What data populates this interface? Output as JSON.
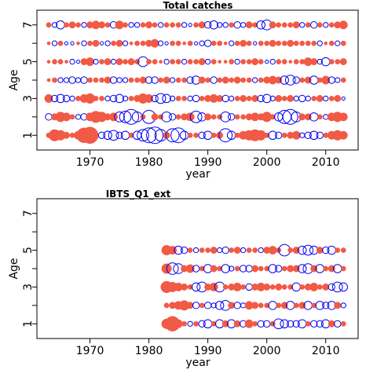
{
  "chart_data": [
    {
      "type": "scatter",
      "title": "Total catches",
      "xlabel": "year",
      "ylabel": "Age",
      "xlim": [
        1961,
        2015.5
      ],
      "ylim": [
        0.2,
        7.8
      ],
      "x_ticks": [
        1970,
        1980,
        1990,
        2000,
        2010
      ],
      "y_ticks": [
        1,
        2,
        3,
        4,
        5,
        6,
        7
      ],
      "y_tick_labels": [
        "1",
        "",
        "3",
        "",
        "5",
        "",
        "7"
      ],
      "years": [
        1963,
        2013
      ],
      "ages": [
        1,
        2,
        3,
        4,
        5,
        6,
        7
      ],
      "positive_color": "#f15a45",
      "negative_color": "#0000ee",
      "encoding": "filled = positive residual, open = negative residual, radius ~ |residual|",
      "residuals": {
        "1": [
          0.3,
          0.7,
          0.6,
          0.4,
          0.3,
          0.5,
          0.9,
          1.0,
          0.3,
          -0.4,
          -0.5,
          -0.6,
          -0.4,
          -0.5,
          0.3,
          -0.5,
          -0.7,
          -0.9,
          -1.0,
          -0.7,
          0.4,
          -0.8,
          -0.9,
          -0.5,
          0.3,
          0.3,
          -0.4,
          -0.5,
          0.3,
          0.4,
          -0.8,
          -0.5,
          0.3,
          0.5,
          0.6,
          0.7,
          0.6,
          0.3,
          -0.5,
          -0.4,
          0.3,
          0.4,
          0.5,
          -0.3,
          -0.4,
          -0.5,
          -0.4,
          0.3,
          0.5,
          0.6,
          0.5
        ],
        "2": [
          -0.4,
          0.4,
          0.6,
          0.5,
          0.3,
          -0.3,
          -0.4,
          0.5,
          0.7,
          0.6,
          0.4,
          0.5,
          -0.6,
          -0.7,
          -0.9,
          -0.6,
          0.3,
          -0.8,
          0.4,
          0.3,
          -0.6,
          -0.4,
          0.3,
          0.4,
          0.5,
          -0.7,
          -0.5,
          0.4,
          0.3,
          0.3,
          -0.6,
          -0.4,
          0.3,
          0.3,
          0.4,
          0.5,
          0.4,
          0.6,
          0.3,
          -0.5,
          -0.8,
          -0.9,
          -0.6,
          0.4,
          0.4,
          -0.5,
          0.3,
          -0.3,
          0.5,
          0.6,
          0.5
        ],
        "3": [
          0.5,
          -0.4,
          -0.5,
          -0.4,
          -0.3,
          0.3,
          0.5,
          0.6,
          0.3,
          0.3,
          -0.3,
          -0.4,
          -0.5,
          -0.3,
          0.3,
          0.4,
          0.6,
          0.5,
          -0.4,
          -0.6,
          -0.5,
          -0.3,
          0.3,
          0.3,
          -0.3,
          -0.4,
          0.3,
          0.4,
          0.5,
          0.4,
          -0.4,
          -0.3,
          0.3,
          0.4,
          0.3,
          0.4,
          -0.4,
          -0.5,
          -0.3,
          0.4,
          0.3,
          0.4,
          -0.3,
          -0.4,
          -0.3,
          0.3,
          0.4,
          -0.3,
          0.3,
          0.4,
          -0.2
        ],
        "4": [
          0.2,
          0.3,
          -0.3,
          -0.3,
          -0.4,
          -0.3,
          -0.4,
          0.3,
          0.3,
          0.3,
          0.4,
          -0.4,
          -0.3,
          -0.3,
          0.3,
          0.3,
          0.4,
          -0.4,
          -0.4,
          0.3,
          0.4,
          -0.3,
          0.3,
          0.3,
          -0.4,
          -0.5,
          0.4,
          0.3,
          -0.4,
          0.3,
          0.4,
          0.3,
          0.4,
          0.3,
          0.3,
          -0.3,
          0.3,
          0.4,
          0.5,
          0.4,
          -0.5,
          -0.6,
          -0.4,
          0.3,
          0.4,
          -0.5,
          0.3,
          0.5,
          -0.4,
          -0.3,
          0.3
        ],
        "5": [
          0.2,
          0.3,
          0.3,
          0.2,
          -0.3,
          -0.2,
          0.4,
          0.5,
          -0.3,
          0.3,
          0.4,
          -0.3,
          0.4,
          0.3,
          0.4,
          0.3,
          -0.6,
          0.3,
          0.3,
          0.2,
          -0.3,
          0.3,
          0.3,
          -0.3,
          0.3,
          0.3,
          0.4,
          -0.3,
          0.3,
          0.2,
          0.2,
          0.3,
          -0.3,
          0.3,
          0.3,
          0.4,
          0.3,
          -0.2,
          -0.3,
          0.3,
          0.3,
          0.2,
          0.3,
          0.3,
          0.5,
          0.4,
          -0.3,
          -0.5,
          0.3,
          0.3,
          0.4
        ],
        "6": [
          0.2,
          -0.3,
          0.3,
          -0.2,
          -0.2,
          0.2,
          -0.3,
          0.3,
          0.4,
          -0.2,
          -0.3,
          0.3,
          0.4,
          -0.3,
          0.2,
          0.3,
          0.3,
          0.4,
          0.5,
          -0.3,
          -0.2,
          0.3,
          0.3,
          0.2,
          0.3,
          -0.2,
          -0.3,
          -0.4,
          0.3,
          0.3,
          0.2,
          -0.3,
          0.3,
          0.4,
          0.3,
          -0.2,
          0.3,
          0.3,
          0.4,
          0.3,
          0.3,
          0.4,
          0.3,
          0.3,
          0.3,
          0.3,
          -0.3,
          0.2,
          0.3,
          -0.3,
          0.3
        ],
        "7": [
          0.3,
          -0.3,
          -0.5,
          0.3,
          0.4,
          0.3,
          -0.3,
          0.4,
          0.5,
          0.4,
          0.3,
          -0.4,
          0.5,
          0.3,
          -0.3,
          -0.3,
          0.3,
          0.4,
          0.3,
          -0.3,
          0.3,
          0.3,
          0.3,
          -0.3,
          -0.2,
          0.3,
          0.4,
          -0.4,
          -0.5,
          -0.3,
          -0.3,
          0.3,
          -0.4,
          -0.3,
          0.4,
          0.3,
          -0.5,
          -0.6,
          0.4,
          0.3,
          0.3,
          0.3,
          0.4,
          -0.3,
          0.3,
          -0.4,
          0.3,
          -0.3,
          0.3,
          0.4,
          0.5
        ]
      }
    },
    {
      "type": "scatter",
      "title": "IBTS_Q1_ext",
      "xlabel": "year",
      "ylabel": "Age",
      "xlim": [
        1961,
        2015.5
      ],
      "ylim": [
        0.2,
        7.8
      ],
      "x_ticks": [
        1970,
        1980,
        1990,
        2000,
        2010
      ],
      "y_ticks": [
        1,
        2,
        3,
        4,
        5,
        6,
        7
      ],
      "y_tick_labels": [
        "1",
        "",
        "3",
        "",
        "5",
        "",
        "7"
      ],
      "years": [
        1983,
        2013
      ],
      "ages": [
        1,
        2,
        3,
        4,
        5
      ],
      "positive_color": "#f15a45",
      "negative_color": "#0000ee",
      "encoding": "filled = positive residual, open = negative residual, radius ~ |residual|",
      "residuals": {
        "1": [
          0.6,
          0.9,
          0.5,
          0.3,
          -0.3,
          0.3,
          -0.4,
          -0.5,
          0.3,
          -0.5,
          0.4,
          -0.5,
          0.4,
          -0.4,
          0.5,
          0.3,
          -0.4,
          -0.4,
          0.3,
          -0.6,
          -0.5,
          -0.4,
          -0.4,
          -0.5,
          0.3,
          -0.4,
          -0.4,
          -0.5,
          0.4,
          -0.4,
          0.3
        ],
        "2": [
          0.3,
          0.4,
          0.5,
          0.6,
          0.4,
          -0.4,
          0.3,
          -0.4,
          -0.3,
          -0.5,
          -0.6,
          0.4,
          -0.4,
          -0.3,
          0.5,
          0.4,
          0.3,
          0.3,
          -0.5,
          0.3,
          0.4,
          -0.5,
          0.3,
          0.4,
          -0.5,
          0.3,
          -0.5,
          -0.4,
          -0.5,
          0.4,
          -0.3
        ],
        "3": [
          0.7,
          0.6,
          0.5,
          0.4,
          0.3,
          -0.5,
          -0.6,
          0.4,
          0.5,
          -0.6,
          0.3,
          0.4,
          0.5,
          0.3,
          -0.4,
          0.4,
          0.5,
          0.4,
          0.3,
          0.4,
          0.3,
          0.3,
          -0.5,
          0.3,
          0.4,
          0.5,
          0.3,
          0.4,
          -0.4,
          -0.6,
          -0.5
        ],
        "4": [
          0.6,
          -0.7,
          -0.6,
          0.4,
          0.5,
          -0.4,
          0.3,
          -0.5,
          0.4,
          0.3,
          -0.5,
          -0.3,
          0.3,
          -0.4,
          -0.4,
          0.4,
          0.3,
          0.3,
          -0.5,
          -0.4,
          0.3,
          0.4,
          0.4,
          -0.5,
          -0.6,
          0.4,
          -0.5,
          0.3,
          0.4,
          -0.5,
          0.3
        ],
        "5": [
          0.6,
          0.5,
          -0.5,
          -0.4,
          0.3,
          -0.3,
          0.3,
          0.3,
          0.4,
          -0.3,
          -0.4,
          0.3,
          0.4,
          -0.3,
          0.3,
          0.3,
          -0.3,
          0.4,
          0.5,
          0.3,
          -0.7,
          0.3,
          0.4,
          -0.5,
          -0.6,
          -0.5,
          0.4,
          -0.4,
          -0.5,
          0.3,
          0.3
        ]
      }
    }
  ]
}
